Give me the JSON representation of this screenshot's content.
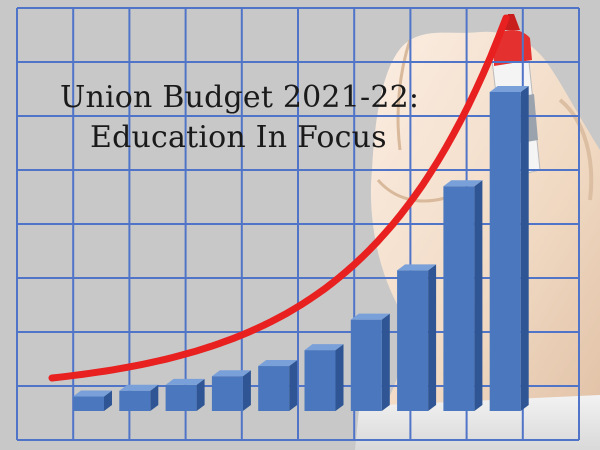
{
  "headline": {
    "line1": "Union Budget 2021-22:",
    "line2": "Education In Focus"
  },
  "chart_data": {
    "type": "bar",
    "categories": [
      "",
      "",
      "",
      "",
      "",
      "",
      "",
      "",
      "",
      ""
    ],
    "values": [
      1,
      1.4,
      1.8,
      2.4,
      3.1,
      4.2,
      6.3,
      9.7,
      15.5,
      22
    ],
    "ylim": [
      0,
      22
    ],
    "grid": true,
    "trend_line": true
  },
  "colors": {
    "background": "#c8c8c8",
    "grid": "#4f74c8",
    "bar_front": "#4a77bd",
    "bar_top": "#7aa0d9",
    "bar_side": "#2f5594",
    "trend": "#e82020",
    "marker_cap": "#e53030",
    "hand": "#f3e2d0",
    "sleeve": "#ededed"
  },
  "icons": {
    "marker": "red-marker-pen-icon",
    "hand": "hand-icon"
  }
}
